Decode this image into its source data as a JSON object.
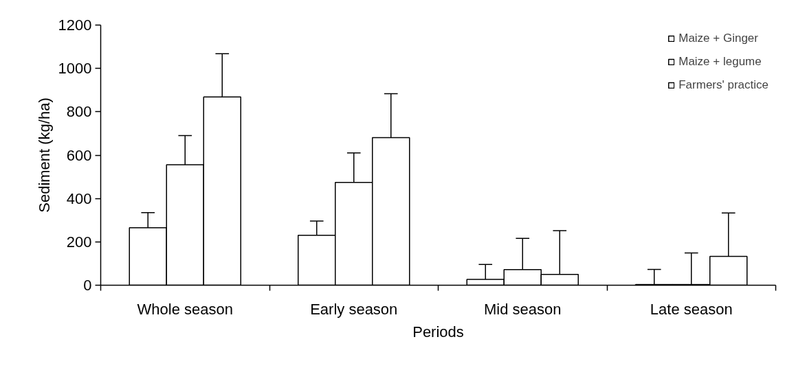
{
  "chart_data": {
    "type": "bar",
    "xlabel": "Periods",
    "ylabel": "Sediment (kg/ha)",
    "categories": [
      "Whole season",
      "Early season",
      "Mid season",
      "Late season"
    ],
    "series": [
      {
        "name": "Maize + Ginger",
        "color": "#ffffff",
        "values": [
          265,
          230,
          27,
          3
        ],
        "errors": [
          [
            265,
            335
          ],
          [
            230,
            296
          ],
          [
            27,
            96
          ],
          [
            3,
            73
          ]
        ]
      },
      {
        "name": "Maize + legume",
        "color": "#ffffff",
        "values": [
          556,
          474,
          72,
          3
        ],
        "errors": [
          [
            556,
            690
          ],
          [
            474,
            610
          ],
          [
            72,
            216
          ],
          [
            3,
            149
          ]
        ]
      },
      {
        "name": "Farmers' practice",
        "color": "#ffffff",
        "values": [
          868,
          681,
          50,
          133
        ],
        "errors": [
          [
            868,
            1068
          ],
          [
            681,
            883
          ],
          [
            50,
            252
          ],
          [
            133,
            333
          ]
        ]
      }
    ],
    "ylim": [
      0,
      1200
    ],
    "yticks": [
      0,
      200,
      400,
      600,
      800,
      1000,
      1200
    ],
    "legend": "top right"
  }
}
